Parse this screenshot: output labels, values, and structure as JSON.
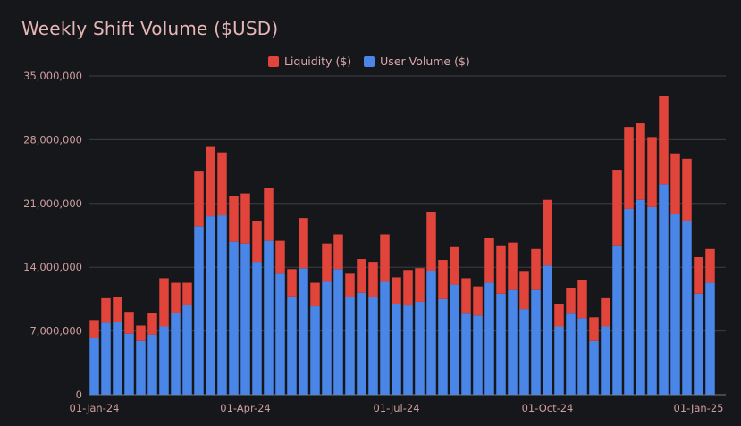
{
  "chart_data": {
    "type": "bar",
    "stacked": true,
    "title": "Weekly Shift Volume ($USD)",
    "xlabel": "",
    "ylabel": "",
    "ylim": [
      0,
      35000000
    ],
    "yticks": [
      0,
      7000000,
      14000000,
      21000000,
      28000000,
      35000000
    ],
    "ytick_labels": [
      "0",
      "7,000,000",
      "14,000,000",
      "21,000,000",
      "28,000,000",
      "35,000,000"
    ],
    "xtick_labels": [
      {
        "label": "01-Jan-24",
        "index": 0
      },
      {
        "label": "01-Apr-24",
        "index": 13
      },
      {
        "label": "01-Jul-24",
        "index": 26
      },
      {
        "label": "01-Oct-24",
        "index": 39
      },
      {
        "label": "01-Jan-25",
        "index": 52
      }
    ],
    "legend": "top-center",
    "series": [
      {
        "name": "User Volume ($)",
        "color": "#4a86e8",
        "values": [
          6200000,
          7900000,
          8000000,
          6700000,
          5900000,
          6600000,
          7500000,
          9000000,
          9900000,
          18500000,
          19600000,
          19700000,
          16800000,
          16600000,
          14600000,
          16900000,
          13300000,
          10800000,
          13900000,
          9700000,
          12400000,
          13800000,
          10700000,
          11200000,
          10700000,
          12400000,
          10000000,
          9800000,
          10200000,
          13600000,
          10500000,
          12100000,
          8900000,
          8700000,
          12300000,
          11100000,
          11500000,
          9400000,
          11500000,
          14200000,
          7500000,
          8900000,
          8400000,
          5900000,
          7500000,
          16400000,
          20400000,
          21400000,
          20600000,
          23100000,
          19800000,
          19100000,
          11100000,
          12300000
        ]
      },
      {
        "name": "Liquidity ($)",
        "color": "#e0443a",
        "values": [
          2000000,
          2700000,
          2700000,
          2400000,
          1700000,
          2400000,
          5300000,
          3300000,
          2400000,
          6000000,
          7600000,
          6900000,
          5000000,
          5500000,
          4500000,
          5800000,
          3600000,
          3000000,
          5500000,
          2600000,
          4200000,
          3800000,
          2600000,
          3700000,
          3900000,
          5200000,
          2900000,
          3900000,
          3700000,
          6500000,
          4300000,
          4100000,
          3900000,
          3200000,
          4900000,
          5300000,
          5200000,
          4100000,
          4500000,
          7200000,
          2500000,
          2800000,
          4200000,
          2600000,
          3100000,
          8300000,
          9000000,
          8400000,
          7700000,
          9700000,
          6700000,
          6800000,
          4000000,
          3700000
        ]
      }
    ]
  }
}
